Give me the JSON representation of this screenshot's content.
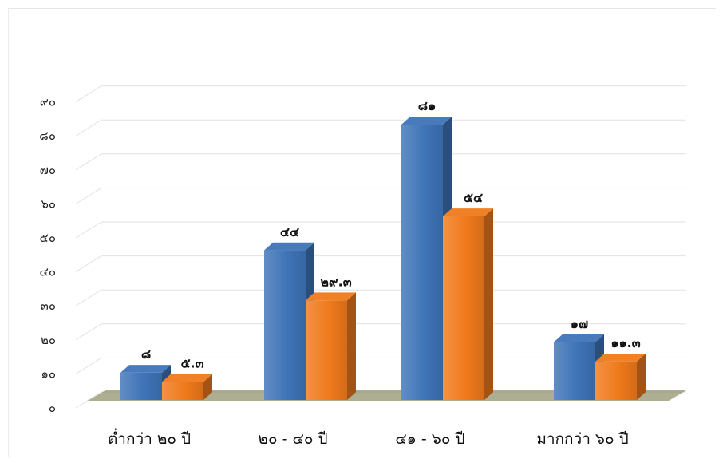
{
  "chart_data": {
    "type": "bar",
    "categories": [
      "ต่ำกว่า ๒๐ ปี",
      "๒๐ - ๔๐ ปี",
      "๔๑ - ๖๐ ปี",
      "มากกว่า ๖๐ ปี"
    ],
    "series": [
      {
        "values": [
          8,
          44,
          81,
          17
        ],
        "labels": [
          "๘",
          "๔๔",
          "๘๑",
          "๑๗"
        ],
        "color": "#3f74b8"
      },
      {
        "values": [
          5.3,
          29.3,
          54,
          11.3
        ],
        "labels": [
          "๕.๓",
          "๒๙.๓",
          "๕๔",
          "๑๑.๓"
        ],
        "color": "#f07a1c"
      }
    ],
    "y_ticks": [
      0,
      10,
      20,
      30,
      40,
      50,
      60,
      70,
      80,
      90
    ],
    "y_tick_labels": [
      "๐",
      "๑๐",
      "๒๐",
      "๓๐",
      "๔๐",
      "๕๐",
      "๖๐",
      "๗๐",
      "๘๐",
      "๙๐"
    ],
    "ylim": [
      0,
      90
    ],
    "grid": true,
    "style": "3d-column",
    "floor_color": "#6b6b3a"
  }
}
